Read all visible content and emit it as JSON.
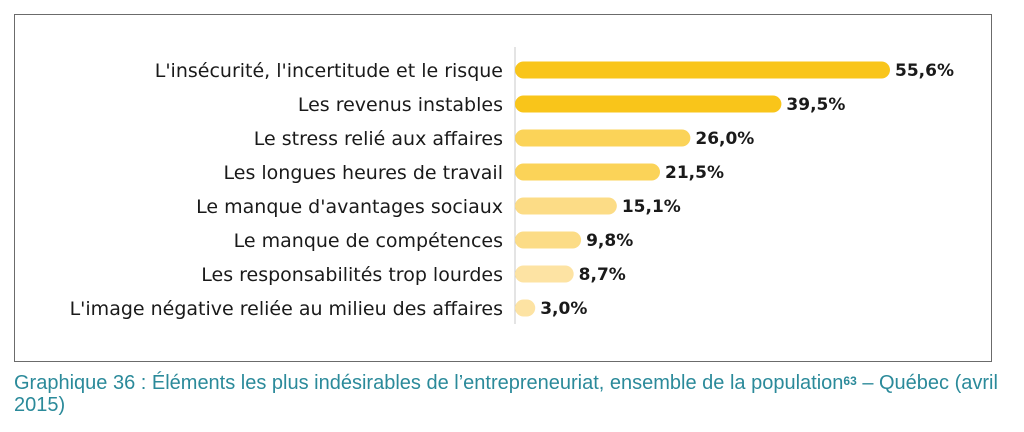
{
  "chart_data": {
    "type": "bar",
    "orientation": "horizontal",
    "categories": [
      "L'insécurité, l'incertitude et le risque",
      "Les revenus instables",
      "Le stress relié aux affaires",
      "Les longues heures de travail",
      "Le manque d'avantages sociaux",
      "Le manque de compétences",
      "Les responsabilités trop lourdes",
      "L'image négative reliée au milieu des affaires"
    ],
    "values": [
      55.6,
      39.5,
      26.0,
      21.5,
      15.1,
      9.8,
      8.7,
      3.0
    ],
    "value_labels": [
      "55,6%",
      "39,5%",
      "26,0%",
      "21,5%",
      "15,1%",
      "9,8%",
      "8,7%",
      "3,0%"
    ],
    "colors": [
      "#f9c51a",
      "#f9c51a",
      "#fbd358",
      "#fbd358",
      "#fcdc86",
      "#fcdc86",
      "#fde3a3",
      "#fde3a3"
    ],
    "xlim": [
      0,
      60
    ],
    "grid": false,
    "legend": "none"
  },
  "caption": {
    "text": "Graphique 36 : Éléments les plus indésirables de l’entrepreneuriat, ensemble de la population",
    "footnote": "63",
    "text_after": " – Québec (avril 2015)"
  }
}
